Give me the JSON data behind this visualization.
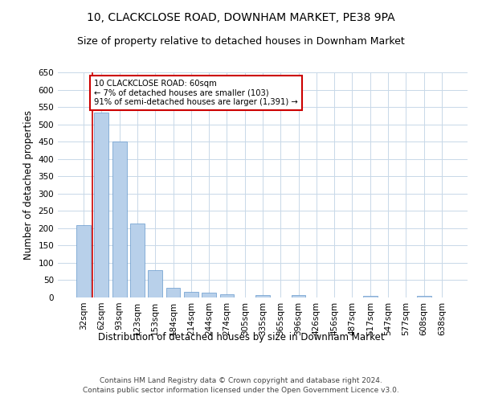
{
  "title": "10, CLACKCLOSE ROAD, DOWNHAM MARKET, PE38 9PA",
  "subtitle": "Size of property relative to detached houses in Downham Market",
  "xlabel": "Distribution of detached houses by size in Downham Market",
  "ylabel": "Number of detached properties",
  "footer_line1": "Contains HM Land Registry data © Crown copyright and database right 2024.",
  "footer_line2": "Contains public sector information licensed under the Open Government Licence v3.0.",
  "categories": [
    "32sqm",
    "62sqm",
    "93sqm",
    "123sqm",
    "153sqm",
    "184sqm",
    "214sqm",
    "244sqm",
    "274sqm",
    "305sqm",
    "335sqm",
    "365sqm",
    "396sqm",
    "426sqm",
    "456sqm",
    "487sqm",
    "517sqm",
    "547sqm",
    "577sqm",
    "608sqm",
    "638sqm"
  ],
  "values": [
    209,
    533,
    451,
    213,
    78,
    27,
    16,
    13,
    10,
    0,
    8,
    0,
    7,
    0,
    0,
    0,
    5,
    0,
    0,
    5,
    0
  ],
  "bar_color": "#b8d0ea",
  "bar_edge_color": "#6699cc",
  "highlight_bar_index": 1,
  "annotation_text": "10 CLACKCLOSE ROAD: 60sqm\n← 7% of detached houses are smaller (103)\n91% of semi-detached houses are larger (1,391) →",
  "annotation_box_color": "#ffffff",
  "annotation_box_edge_color": "#cc0000",
  "vline_color": "#cc0000",
  "ylim": [
    0,
    650
  ],
  "yticks": [
    0,
    50,
    100,
    150,
    200,
    250,
    300,
    350,
    400,
    450,
    500,
    550,
    600,
    650
  ],
  "grid_color": "#c8d8e8",
  "background_color": "#ffffff",
  "title_fontsize": 10,
  "subtitle_fontsize": 9,
  "axis_label_fontsize": 8.5,
  "tick_fontsize": 7.5,
  "footer_fontsize": 6.5
}
